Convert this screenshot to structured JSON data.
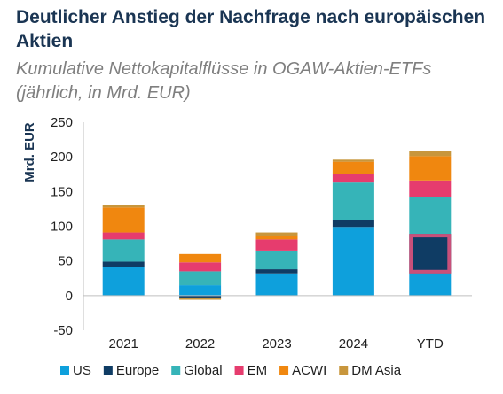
{
  "chart_data": {
    "type": "bar",
    "stacked": true,
    "title": "Deutlicher Anstieg der Nachfrage nach europäischen Aktien",
    "subtitle": "Kumulative Nettokapitalflüsse in OGAW-Aktien-ETFs (jährlich, in Mrd. EUR)",
    "xlabel": "",
    "ylabel": "Mrd. EUR",
    "ylim": [
      -50,
      250
    ],
    "yticks": [
      -50,
      0,
      50,
      100,
      150,
      200,
      250
    ],
    "grid": false,
    "legend_position": "bottom",
    "categories": [
      "2021",
      "2022",
      "2023",
      "2024",
      "YTD"
    ],
    "series": [
      {
        "name": "US",
        "color": "#0ea0dc",
        "values": [
          41,
          15,
          32,
          99,
          32
        ]
      },
      {
        "name": "Europe",
        "color": "#0f3c64",
        "values": [
          8,
          -4,
          6,
          10,
          57
        ]
      },
      {
        "name": "Global",
        "color": "#36b4b8",
        "values": [
          32,
          20,
          27,
          54,
          53
        ]
      },
      {
        "name": "EM",
        "color": "#e63c6e",
        "values": [
          10,
          13,
          16,
          12,
          24
        ]
      },
      {
        "name": "ACWI",
        "color": "#f0870f",
        "values": [
          36,
          12,
          5,
          18,
          35
        ]
      },
      {
        "name": "DM Asia",
        "color": "#c8963c",
        "values": [
          4,
          -2,
          5,
          3,
          7
        ]
      }
    ],
    "highlight": {
      "category": "YTD",
      "series": "Europe",
      "color": "#c8507a"
    }
  }
}
